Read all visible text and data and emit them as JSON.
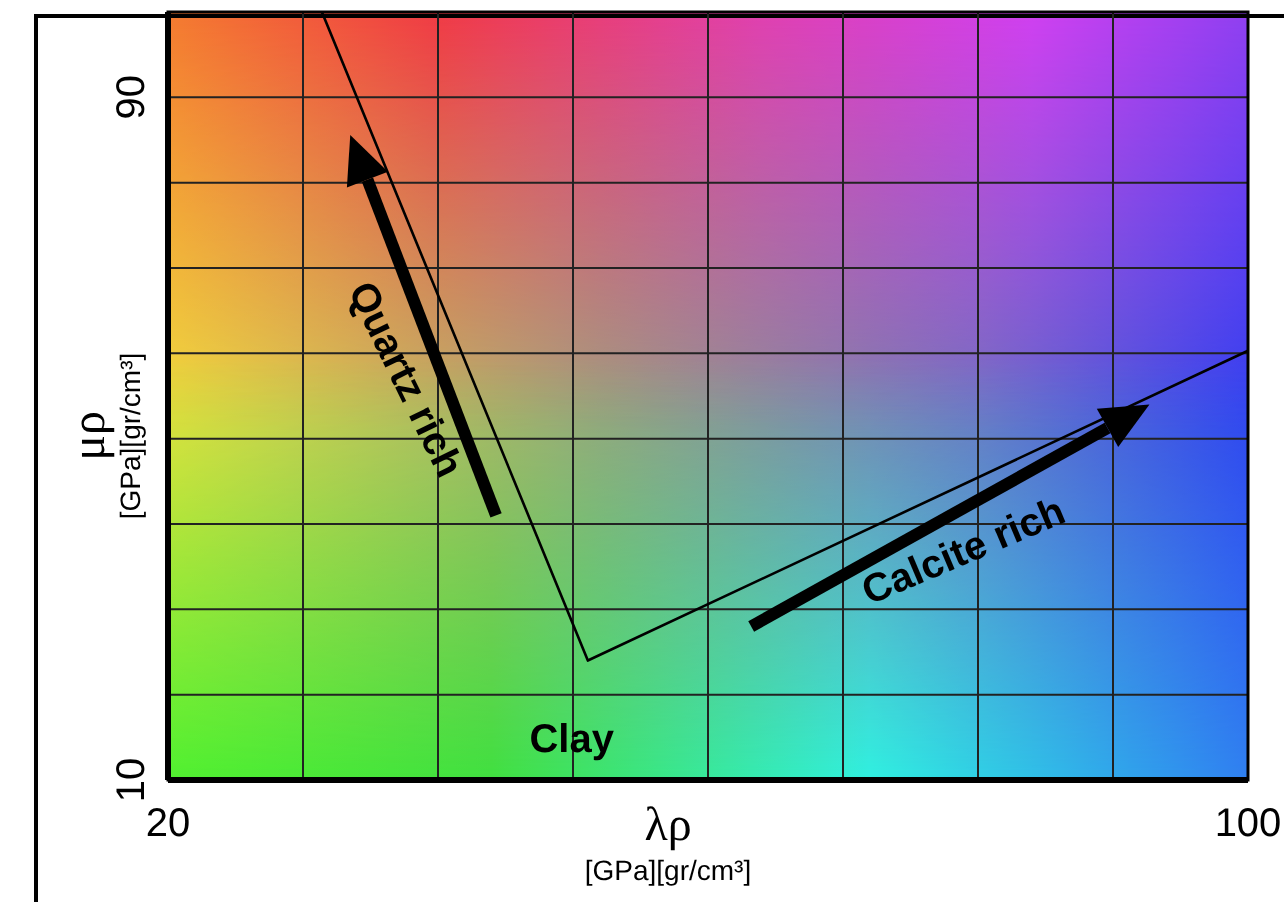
{
  "chart_data": {
    "type": "line",
    "xlabel": "λρ\n[GPa][gr/cm³]",
    "ylabel": "μρ\n[GPa][gr/cm³]",
    "xlim": [
      20,
      100
    ],
    "ylim": [
      10,
      100
    ],
    "xticks": [
      20,
      {
        "value": 30,
        "label": null
      },
      {
        "value": 40,
        "label": null
      },
      {
        "value": 50,
        "label": null
      },
      {
        "value": 60,
        "label": null
      },
      {
        "value": 70,
        "label": null
      },
      {
        "value": 80,
        "label": null
      },
      {
        "value": 90,
        "label": null
      },
      100
    ],
    "yticks": [
      10,
      {
        "value": 20,
        "label": null
      },
      {
        "value": 30,
        "label": null
      },
      {
        "value": 40,
        "label": null
      },
      {
        "value": 50,
        "label": null
      },
      {
        "value": 60,
        "label": null
      },
      {
        "value": 70,
        "label": null
      },
      {
        "value": 80,
        "label": null
      },
      90,
      {
        "value": 100,
        "label": null
      }
    ],
    "grid": true,
    "marker": "none",
    "line_style": "solid",
    "series": [
      {
        "color": "#000000",
        "x": [
          31.4,
          51.1,
          100
        ],
        "values": [
          100,
          24,
          60.3
        ]
      }
    ],
    "annotations": [
      "Quartz rich",
      "Calcite rich",
      "Clay"
    ]
  }
}
